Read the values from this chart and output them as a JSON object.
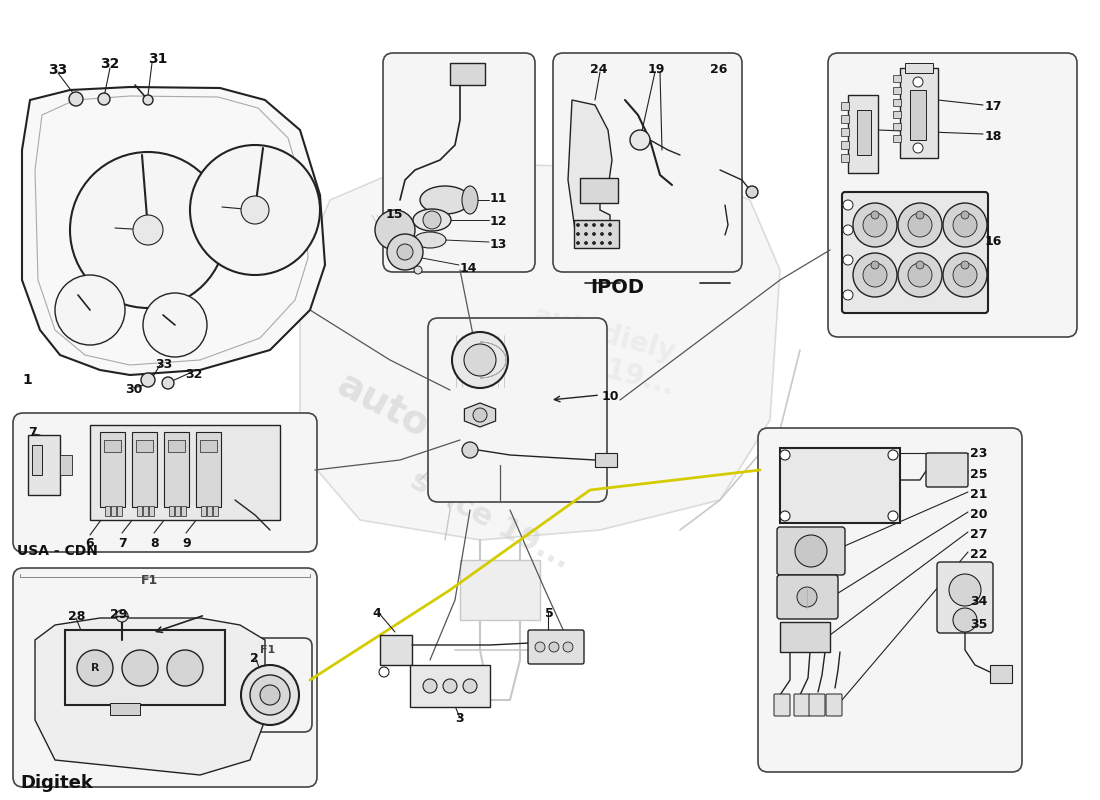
{
  "bg_color": "#ffffff",
  "line_color": "#222222",
  "box_edge_color": "#444444",
  "label_color": "#111111",
  "watermark_color": "#cccccc",
  "interior_color": "#c8c8c8",
  "yellow_color": "#d4cc00",
  "ipod_label": "IPOD",
  "digitek_label": "Digitek",
  "usa_cdn_label": "USA - CDN",
  "f1_label": "F1"
}
